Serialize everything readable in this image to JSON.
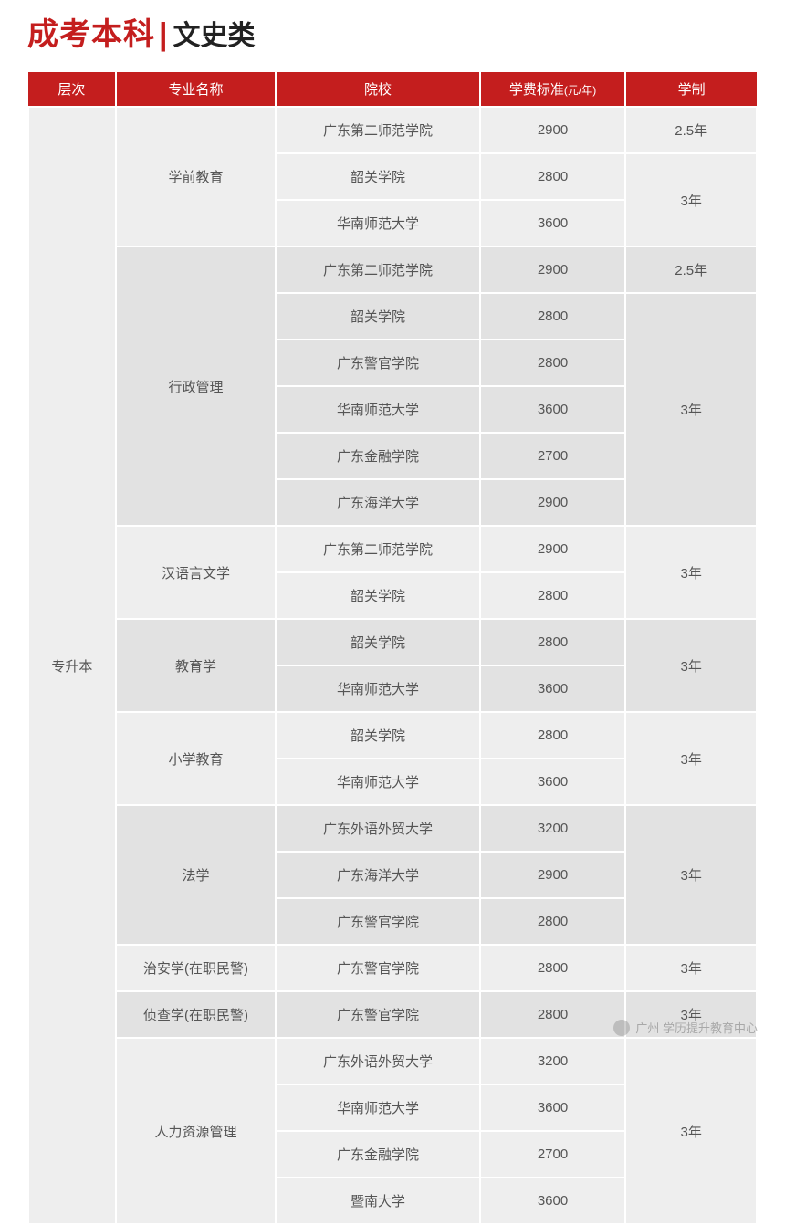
{
  "title": {
    "main": "成考本科",
    "sep": "|",
    "sub": "文史类"
  },
  "colors": {
    "header_bg": "#c41e1e",
    "header_fg": "#ffffff",
    "row_bg_a": "#eeeeee",
    "row_bg_b": "#e2e2e2",
    "border": "#ffffff",
    "title_main": "#c41e1e",
    "title_sub": "#222222",
    "cell_text": "#555555"
  },
  "typography": {
    "title_main_size_pt": 26,
    "title_sub_size_pt": 23,
    "header_size_pt": 11,
    "cell_size_pt": 11
  },
  "table": {
    "columns": [
      {
        "key": "level",
        "label": "层次",
        "width_pct": 12
      },
      {
        "key": "major",
        "label": "专业名称",
        "width_pct": 22
      },
      {
        "key": "school",
        "label": "院校",
        "width_pct": 28
      },
      {
        "key": "tuition",
        "label": "学费标准",
        "unit": "(元/年)",
        "width_pct": 20
      },
      {
        "key": "duration",
        "label": "学制",
        "width_pct": 18
      }
    ],
    "level": "专升本",
    "groups": [
      {
        "major": "学前教育",
        "rows": [
          {
            "school": "广东第二师范学院",
            "tuition": "2900",
            "duration": "2.5年",
            "dur_span": 1
          },
          {
            "school": "韶关学院",
            "tuition": "2800",
            "duration": "3年",
            "dur_span": 2
          },
          {
            "school": "华南师范大学",
            "tuition": "3600"
          }
        ]
      },
      {
        "major": "行政管理",
        "rows": [
          {
            "school": "广东第二师范学院",
            "tuition": "2900",
            "duration": "2.5年",
            "dur_span": 1
          },
          {
            "school": "韶关学院",
            "tuition": "2800",
            "duration": "3年",
            "dur_span": 5
          },
          {
            "school": "广东警官学院",
            "tuition": "2800"
          },
          {
            "school": "华南师范大学",
            "tuition": "3600"
          },
          {
            "school": "广东金融学院",
            "tuition": "2700"
          },
          {
            "school": "广东海洋大学",
            "tuition": "2900"
          }
        ]
      },
      {
        "major": "汉语言文学",
        "rows": [
          {
            "school": "广东第二师范学院",
            "tuition": "2900",
            "duration": "3年",
            "dur_span": 2
          },
          {
            "school": "韶关学院",
            "tuition": "2800"
          }
        ]
      },
      {
        "major": "教育学",
        "rows": [
          {
            "school": "韶关学院",
            "tuition": "2800",
            "duration": "3年",
            "dur_span": 2
          },
          {
            "school": "华南师范大学",
            "tuition": "3600"
          }
        ]
      },
      {
        "major": "小学教育",
        "rows": [
          {
            "school": "韶关学院",
            "tuition": "2800",
            "duration": "3年",
            "dur_span": 2
          },
          {
            "school": "华南师范大学",
            "tuition": "3600"
          }
        ]
      },
      {
        "major": "法学",
        "rows": [
          {
            "school": "广东外语外贸大学",
            "tuition": "3200",
            "duration": "3年",
            "dur_span": 3
          },
          {
            "school": "广东海洋大学",
            "tuition": "2900"
          },
          {
            "school": "广东警官学院",
            "tuition": "2800"
          }
        ]
      },
      {
        "major": "治安学(在职民警)",
        "rows": [
          {
            "school": "广东警官学院",
            "tuition": "2800",
            "duration": "3年",
            "dur_span": 1
          }
        ]
      },
      {
        "major": "侦查学(在职民警)",
        "rows": [
          {
            "school": "广东警官学院",
            "tuition": "2800",
            "duration": "3年",
            "dur_span": 1
          }
        ]
      },
      {
        "major": "人力资源管理",
        "rows": [
          {
            "school": "广东外语外贸大学",
            "tuition": "3200",
            "duration": "3年",
            "dur_span": 4
          },
          {
            "school": "华南师范大学",
            "tuition": "3600"
          },
          {
            "school": "广东金融学院",
            "tuition": "2700"
          },
          {
            "school": "暨南大学",
            "tuition": "3600"
          }
        ]
      }
    ]
  },
  "watermark": {
    "text": "广州 学历提升教育中心"
  }
}
